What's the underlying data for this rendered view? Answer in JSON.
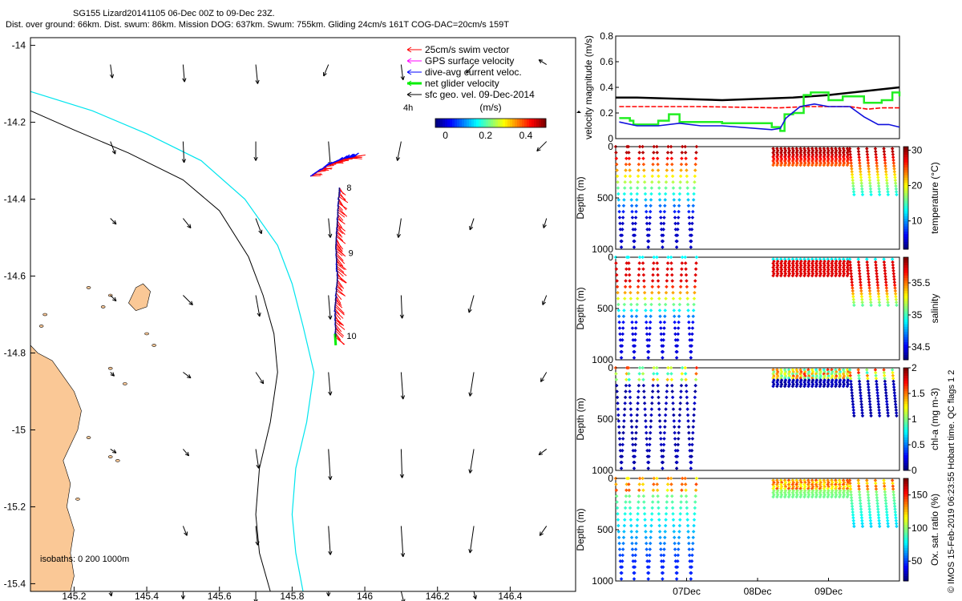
{
  "header": {
    "line1": "SG155 Lizard20141105 06-Dec 00Z to 09-Dec 23Z.",
    "line2": "Dist. over ground: 66km. Dist. swum: 86km. Mission DOG: 637km. Swum: 755km. Gliding 24cm/s 161T COG-DAC=20cm/s 159T"
  },
  "credit": "© IMOS 15-Feb-2019 06:23:55 Hobart time. QC flags 1  2",
  "colors": {
    "land": "#fac896",
    "isobath_200": "#000000",
    "isobath_1000": "#00e5ee",
    "swim": "#ff0000",
    "gps": "#ff00ff",
    "dac": "#0000ff",
    "net": "#00ee00",
    "geo": "#000000",
    "vel_black": "#000000",
    "vel_red": "#ff0000",
    "vel_green": "#22ee22",
    "vel_blue": "#1010dd"
  },
  "chart_data": [
    {
      "type": "map",
      "xlim": [
        145.08,
        146.58
      ],
      "ylim": [
        -15.42,
        -13.98
      ],
      "xticks": [
        145.2,
        145.4,
        145.6,
        145.8,
        146,
        146.2,
        146.4
      ],
      "xtick_labels": [
        "145.2",
        "145.4",
        "145.6",
        "145.8",
        "146",
        "146.2",
        "146.4"
      ],
      "yticks": [
        -14,
        -14.2,
        -14.4,
        -14.6,
        -14.8,
        -15,
        -15.2,
        -15.4
      ],
      "ytick_labels": [
        "-14",
        "-14.2",
        "-14.4",
        "-14.6",
        "-14.8",
        "-15",
        "-15.2",
        "-15.4"
      ],
      "legend": [
        {
          "key": "swim",
          "label": "25cm/s swim vector"
        },
        {
          "key": "gps",
          "label": "GPS surface velocity"
        },
        {
          "key": "dac",
          "label": "dive-avg current veloc."
        },
        {
          "key": "net",
          "label": "net glider velocity"
        },
        {
          "key": "geo",
          "label": "sfc geo. vel. 09-Dec-2014"
        }
      ],
      "arrow_scale_label": "4h",
      "colorbar": {
        "label": "(m/s)",
        "ticks": [
          0,
          0.2,
          0.4
        ],
        "tick_labels": [
          "0",
          "0.2",
          "0.4"
        ],
        "range": [
          -0.05,
          0.5
        ]
      },
      "isobath_note": "isobaths: 0   200  1000m",
      "day_markers": [
        {
          "label": "8",
          "lon": 145.95,
          "lat": -14.37
        },
        {
          "label": "9",
          "lon": 145.955,
          "lat": -14.54
        },
        {
          "label": "10",
          "lon": 145.95,
          "lat": -14.755
        }
      ],
      "track_north": [
        [
          145.93,
          -14.37
        ],
        [
          145.925,
          -14.45
        ],
        [
          145.92,
          -14.52
        ],
        [
          145.925,
          -14.6
        ],
        [
          145.918,
          -14.68
        ],
        [
          145.92,
          -14.76
        ]
      ],
      "track_west": [
        [
          145.85,
          -14.34
        ],
        [
          145.9,
          -14.31
        ],
        [
          145.94,
          -14.295
        ],
        [
          145.97,
          -14.29
        ]
      ],
      "geo_arrows": {
        "lons": [
          145.1,
          145.3,
          145.5,
          145.7,
          145.9,
          146.1,
          146.3,
          146.5
        ],
        "lats": [
          -14.05,
          -14.25,
          -14.45,
          -14.65,
          -14.85,
          -15.05,
          -15.25,
          -15.42
        ],
        "vectors": [
          [
            null,
            [
              0.02,
              -0.14
            ],
            [
              0.015,
              -0.18
            ],
            [
              0.02,
              -0.2
            ],
            [
              -0.05,
              -0.12
            ],
            [
              0.02,
              -0.16
            ],
            [
              -0.08,
              -0.09
            ],
            [
              -0.08,
              0.05
            ]
          ],
          [
            null,
            [
              0.05,
              -0.13
            ],
            [
              0.01,
              -0.22
            ],
            [
              0.0,
              -0.2
            ],
            [
              0.02,
              -0.25
            ],
            [
              -0.04,
              -0.2
            ],
            null,
            [
              -0.1,
              -0.1
            ]
          ],
          [
            null,
            [
              0.06,
              -0.06
            ],
            [
              0.08,
              -0.1
            ],
            [
              0.06,
              -0.16
            ],
            [
              0.02,
              -0.2
            ],
            [
              -0.03,
              -0.2
            ],
            [
              -0.04,
              -0.12
            ],
            [
              -0.03,
              -0.1
            ]
          ],
          [
            null,
            [
              0.06,
              -0.06
            ],
            [
              0.1,
              -0.1
            ],
            [
              0.04,
              -0.22
            ],
            [
              0.02,
              -0.25
            ],
            [
              0.01,
              -0.24
            ],
            [
              -0.05,
              -0.18
            ],
            [
              -0.04,
              -0.1
            ]
          ],
          [
            null,
            [
              0.04,
              -0.04
            ],
            [
              0.08,
              -0.06
            ],
            [
              0.08,
              -0.12
            ],
            [
              0.02,
              -0.24
            ],
            [
              0.02,
              -0.28
            ],
            [
              -0.04,
              -0.25
            ],
            [
              -0.06,
              -0.1
            ]
          ],
          [
            null,
            [
              0.06,
              -0.04
            ],
            [
              0.06,
              -0.07
            ],
            [
              0.03,
              -0.2
            ],
            [
              0.02,
              -0.32
            ],
            [
              0.01,
              -0.3
            ],
            [
              -0.04,
              -0.25
            ],
            [
              -0.08,
              -0.06
            ]
          ],
          [
            null,
            null,
            [
              0.04,
              -0.1
            ],
            [
              0.02,
              -0.2
            ],
            [
              0.02,
              -0.3
            ],
            [
              0.02,
              -0.32
            ],
            [
              -0.04,
              -0.28
            ],
            [
              -0.07,
              -0.1
            ]
          ],
          [
            null,
            [
              0.01,
              -0.05
            ],
            [
              0.0,
              -0.08
            ],
            [
              0.0,
              -0.12
            ],
            [
              0.0,
              -0.05
            ],
            [
              0.03,
              -0.12
            ],
            [
              0.02,
              -0.08
            ],
            null
          ]
        ]
      }
    },
    {
      "type": "line",
      "ylabel": "velocity magnitude (m/s)",
      "ylim": [
        0,
        0.8
      ],
      "yticks": [
        0,
        0.2,
        0.4,
        0.6,
        0.8
      ],
      "ytick_labels": [
        "0",
        "0.2",
        "0.4",
        "0.6",
        "0.8"
      ],
      "xlim": [
        0,
        4
      ],
      "series": [
        {
          "name": "black",
          "x": [
            0,
            0.3,
            1.5,
            2.5,
            3.0,
            4.0
          ],
          "y": [
            0.32,
            0.32,
            0.3,
            0.32,
            0.34,
            0.4
          ]
        },
        {
          "name": "red",
          "x": [
            0.05,
            1.15,
            2.3,
            2.7,
            3.3,
            3.55,
            3.75,
            4.0
          ],
          "y": [
            0.25,
            0.25,
            0.24,
            0.25,
            0.25,
            0.23,
            0.24,
            0.24
          ]
        },
        {
          "name": "green",
          "x": [
            0.05,
            0.2,
            0.25,
            0.4,
            0.6,
            0.75,
            0.9,
            1.1,
            1.5,
            2.2,
            2.32,
            2.38,
            2.5,
            2.65,
            2.75,
            3.0,
            3.2,
            3.5,
            3.75,
            3.9,
            4.0
          ],
          "y": [
            0.16,
            0.14,
            0.11,
            0.11,
            0.14,
            0.19,
            0.13,
            0.13,
            0.12,
            0.09,
            0.06,
            0.19,
            0.2,
            0.34,
            0.36,
            0.3,
            0.33,
            0.28,
            0.3,
            0.36,
            0.33
          ]
        },
        {
          "name": "blue",
          "x": [
            0.05,
            0.3,
            0.6,
            0.9,
            1.2,
            1.5,
            2.2,
            2.32,
            2.4,
            2.6,
            2.8,
            3.0,
            3.3,
            3.5,
            3.7,
            3.85,
            4.0
          ],
          "y": [
            0.13,
            0.1,
            0.1,
            0.12,
            0.1,
            0.1,
            0.07,
            0.08,
            0.16,
            0.25,
            0.27,
            0.25,
            0.25,
            0.17,
            0.11,
            0.11,
            0.09
          ]
        }
      ]
    },
    {
      "type": "scatter",
      "ylabel": "Depth (m)",
      "ylim": [
        1000,
        0
      ],
      "yticks": [
        0,
        500,
        1000
      ],
      "ytick_labels": [
        "0",
        "500",
        "1000"
      ],
      "colorbar_label": "temperature (°C)",
      "crange": [
        2,
        31
      ],
      "cticks": [
        10,
        20,
        30
      ],
      "ctick_labels": [
        "10",
        "20",
        "30"
      ],
      "profile": "temperature"
    },
    {
      "type": "scatter",
      "ylabel": "Depth (m)",
      "ylim": [
        1000,
        0
      ],
      "yticks": [
        0,
        500,
        1000
      ],
      "ytick_labels": [
        "0",
        "500",
        "1000"
      ],
      "colorbar_label": "salinity",
      "crange": [
        34.3,
        35.9
      ],
      "cticks": [
        34.5,
        35,
        35.5
      ],
      "ctick_labels": [
        "34.5",
        "35",
        "35.5"
      ],
      "profile": "salinity"
    },
    {
      "type": "scatter",
      "ylabel": "Depth (m)",
      "ylim": [
        1000,
        0
      ],
      "yticks": [
        0,
        500,
        1000
      ],
      "ytick_labels": [
        "0",
        "500",
        "1000"
      ],
      "colorbar_label": "chl-a (mg m-3)",
      "crange": [
        0,
        2
      ],
      "cticks": [
        0,
        0.5,
        1,
        1.5,
        2
      ],
      "ctick_labels": [
        "0",
        "0.5",
        "1",
        "1.5",
        "2"
      ],
      "profile": "chl"
    },
    {
      "type": "scatter",
      "ylabel": "Depth (m)",
      "ylim": [
        1000,
        0
      ],
      "yticks": [
        0,
        500,
        1000
      ],
      "ytick_labels": [
        "0",
        "500",
        "1000"
      ],
      "colorbar_label": "Ox. sat. ratio (%)",
      "crange": [
        20,
        175
      ],
      "cticks": [
        50,
        100,
        150
      ],
      "ctick_labels": [
        "50",
        "100",
        "150"
      ],
      "profile": "oxygen",
      "xticks": [
        1,
        2,
        3
      ],
      "xtick_labels": [
        "07Dec",
        "08Dec",
        "09Dec"
      ]
    }
  ]
}
